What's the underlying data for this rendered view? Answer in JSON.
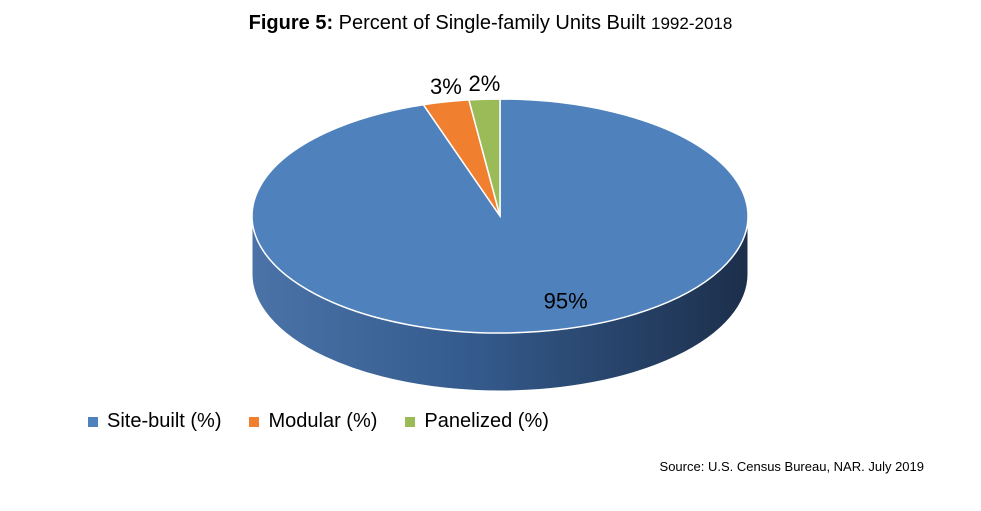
{
  "chart_data": {
    "type": "pie",
    "title_bold": "Figure 5:",
    "title_main": " Percent of Single-family Units Built ",
    "title_years": "1992-2018",
    "slices": [
      {
        "name": "Site-built (%)",
        "value": 95,
        "label": "95%",
        "color": "#4f81bd"
      },
      {
        "name": "Modular (%)",
        "value": 3,
        "label": "3%",
        "color": "#f07f30"
      },
      {
        "name": "Panelized (%)",
        "value": 2,
        "label": "2%",
        "color": "#9bbb59"
      }
    ],
    "legend_position": "bottom-left",
    "source": "Source: U.S. Census Bureau, NAR. July 2019"
  }
}
